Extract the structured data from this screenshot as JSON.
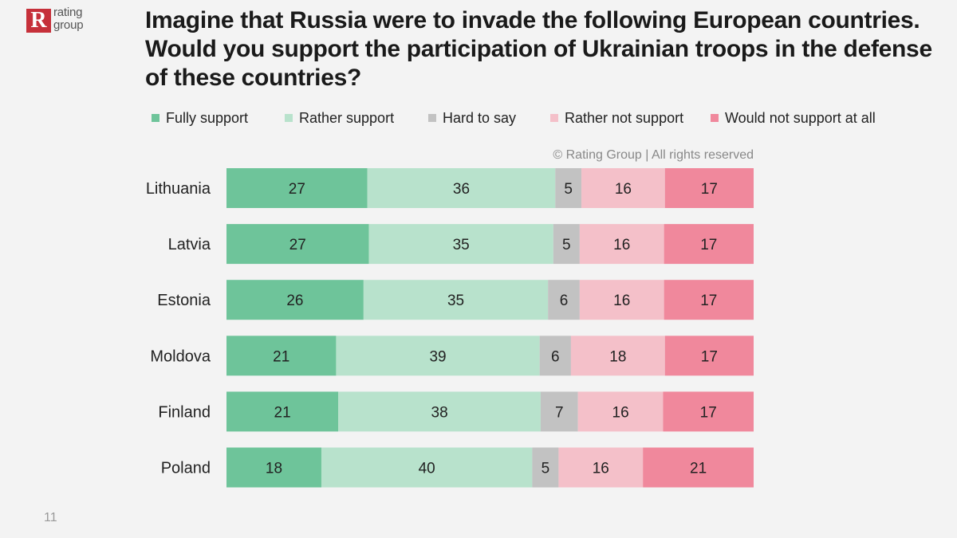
{
  "logo": {
    "mark": "R",
    "line1": "rating",
    "line2": "group"
  },
  "title": "Imagine that Russia were to invade the following European countries. Would you support the participation of Ukrainian troops in the defense of these countries?",
  "copyright": "© Rating Group | All rights reserved",
  "page_number": "11",
  "colors": {
    "fully_support": "#6ec49a",
    "rather_support": "#b8e2cc",
    "hard_to_say": "#c2c2c2",
    "rather_not_support": "#f4c0c9",
    "would_not_support": "#f0889c"
  },
  "chart_data": {
    "type": "bar",
    "orientation": "horizontal",
    "stacked": true,
    "categories": [
      "Lithuania",
      "Latvia",
      "Estonia",
      "Moldova",
      "Finland",
      "Poland"
    ],
    "series": [
      {
        "name": "Fully support",
        "values": [
          27,
          27,
          26,
          21,
          21,
          18
        ]
      },
      {
        "name": "Rather support",
        "values": [
          36,
          35,
          35,
          39,
          38,
          40
        ]
      },
      {
        "name": "Hard to say",
        "values": [
          5,
          5,
          6,
          6,
          7,
          5
        ]
      },
      {
        "name": "Rather not support",
        "values": [
          16,
          16,
          16,
          18,
          16,
          16
        ]
      },
      {
        "name": "Would not support at all",
        "values": [
          17,
          17,
          17,
          17,
          17,
          21
        ]
      }
    ],
    "legend_position": "top",
    "data_labels": true,
    "grid": false
  }
}
